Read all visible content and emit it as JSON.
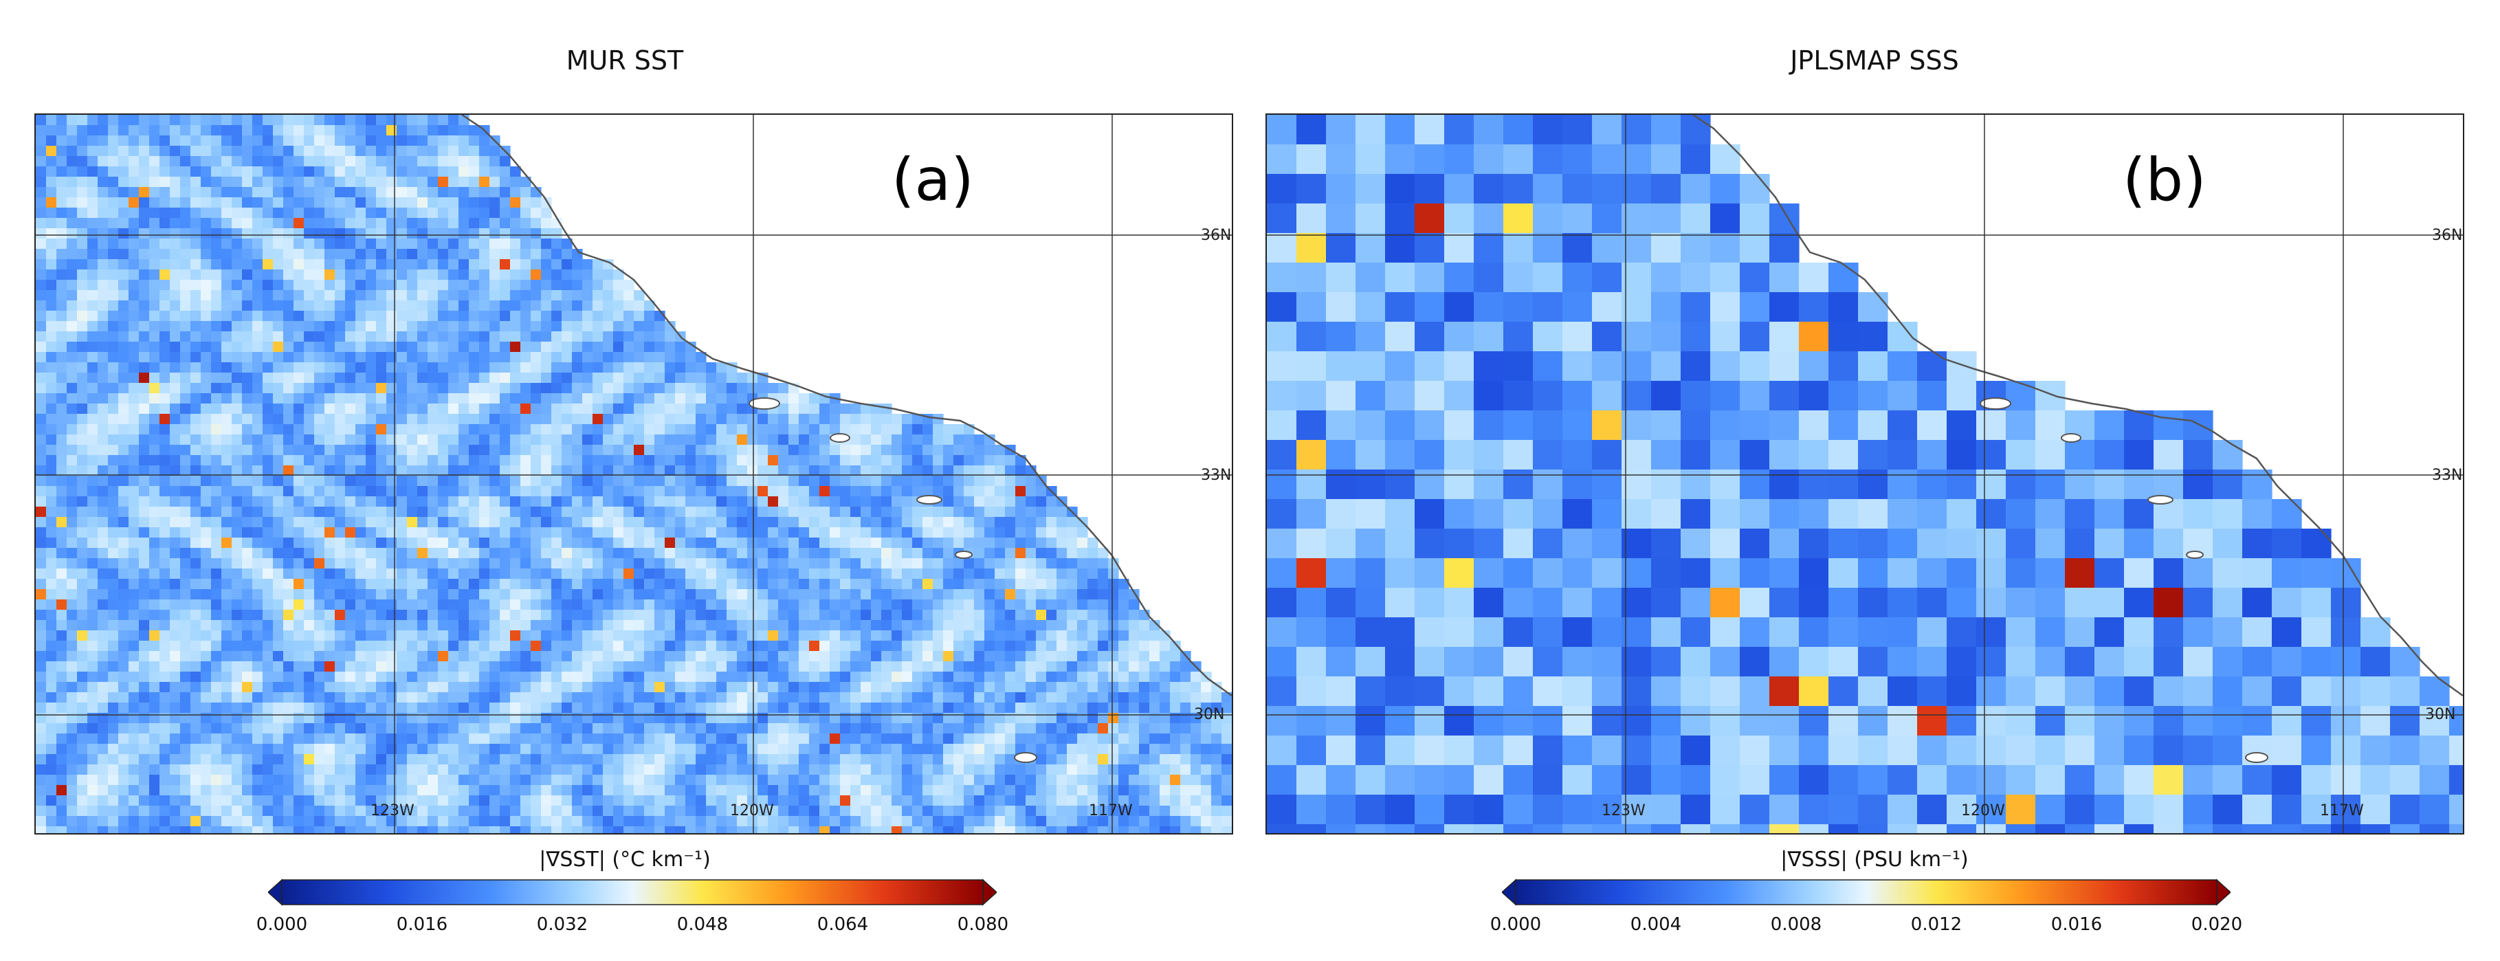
{
  "panels": [
    {
      "title": "MUR SST",
      "label": "(a)",
      "lat_labels": [
        "36N",
        "33N",
        "30N"
      ],
      "lon_labels": [
        "123W",
        "120W",
        "117W"
      ],
      "colorbar": {
        "title": "|∇SST| (°C km⁻¹)",
        "ticks": [
          "0.000",
          "0.016",
          "0.032",
          "0.048",
          "0.064",
          "0.080"
        ],
        "range": [
          0.0,
          0.08
        ]
      },
      "field": "sea surface temperature gradient"
    },
    {
      "title": "JPLSMAP SSS",
      "label": "(b)",
      "lat_labels": [
        "36N",
        "33N",
        "30N"
      ],
      "lon_labels": [
        "123W",
        "120W",
        "117W"
      ],
      "colorbar": {
        "title": "|∇SSS| (PSU km⁻¹)",
        "ticks": [
          "0.000",
          "0.004",
          "0.008",
          "0.012",
          "0.016",
          "0.020"
        ],
        "range": [
          0.0,
          0.02
        ]
      },
      "field": "sea surface salinity gradient"
    }
  ],
  "map_extent": {
    "lon": [
      -125.5,
      -115.5
    ],
    "lat": [
      28.5,
      37.5
    ]
  },
  "colormap": [
    "#0a1f8f",
    "#1f4fe0",
    "#4a90ff",
    "#9fd4ff",
    "#e9f6ff",
    "#fde64a",
    "#ff9a1e",
    "#e23a16",
    "#8b0000"
  ]
}
